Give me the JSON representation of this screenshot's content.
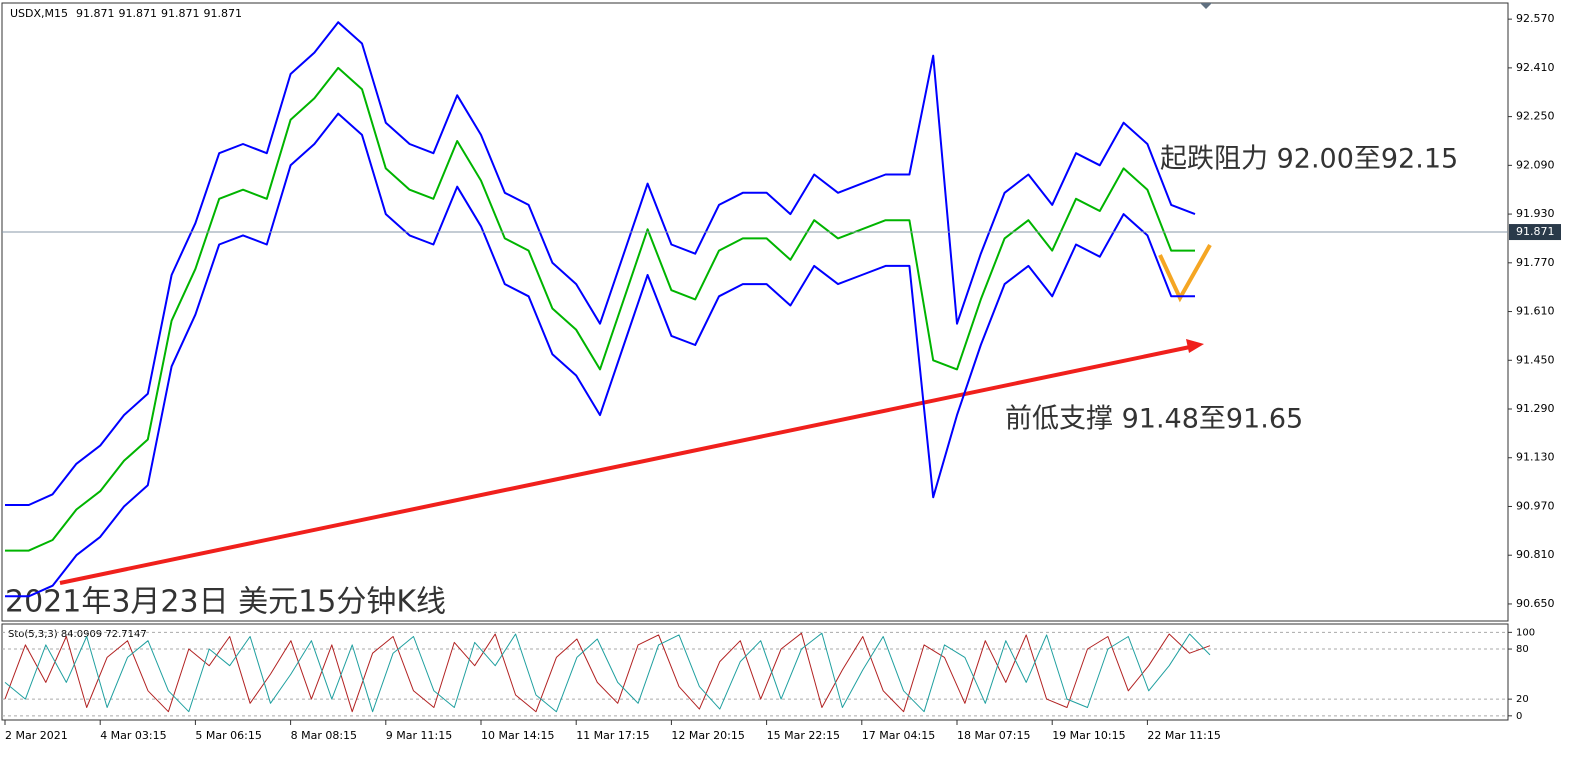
{
  "chart_data": [
    {
      "type": "line",
      "symbol": "USDX,M15",
      "ohlc": [
        91.871,
        91.871,
        91.871,
        91.871
      ],
      "last_price": 91.871,
      "annotations": [
        "起跌阻力 92.00至92.15",
        "前低支撑 91.48至91.65",
        "2021年3月23日 美元15分钟K线"
      ],
      "categories": [
        "2 Mar 2021",
        null,
        null,
        null,
        "4 Mar 03:15",
        null,
        null,
        null,
        "5 Mar 06:15",
        null,
        null,
        null,
        "8 Mar 08:15",
        null,
        null,
        null,
        "9 Mar 11:15",
        null,
        null,
        null,
        "10 Mar 14:15",
        null,
        null,
        null,
        "11 Mar 17:15",
        null,
        null,
        null,
        "12 Mar 20:15",
        null,
        null,
        null,
        "15 Mar 22:15",
        null,
        null,
        null,
        "17 Mar 04:15",
        null,
        null,
        null,
        "18 Mar 07:15",
        null,
        null,
        null,
        "19 Mar 10:15",
        null,
        null,
        null,
        "22 Mar 11:15",
        null,
        null
      ],
      "series": [
        {
          "color": "#0000ff",
          "values": [
            90.975,
            90.975,
            91.01,
            91.11,
            91.17,
            91.27,
            91.34,
            91.73,
            91.9,
            92.13,
            92.16,
            92.13,
            92.39,
            92.46,
            92.56,
            92.49,
            92.23,
            92.16,
            92.13,
            92.32,
            92.19,
            92.0,
            91.96,
            91.77,
            91.7,
            91.57,
            91.8,
            92.03,
            91.83,
            91.8,
            91.96,
            92.0,
            92.0,
            91.93,
            92.06,
            92.0,
            92.03,
            92.06,
            92.06,
            92.45,
            91.57,
            91.8,
            92.0,
            92.06,
            91.96,
            92.13,
            92.09,
            92.23,
            92.16,
            91.96,
            91.93
          ]
        },
        {
          "color": "#0000ff",
          "values": [
            90.675,
            90.675,
            90.71,
            90.81,
            90.87,
            90.97,
            91.04,
            91.43,
            91.6,
            91.83,
            91.86,
            91.83,
            92.09,
            92.16,
            92.26,
            92.19,
            91.93,
            91.86,
            91.83,
            92.02,
            91.89,
            91.7,
            91.66,
            91.47,
            91.4,
            91.27,
            91.5,
            91.73,
            91.53,
            91.5,
            91.66,
            91.7,
            91.7,
            91.63,
            91.76,
            91.7,
            91.73,
            91.76,
            91.76,
            91.0,
            91.27,
            91.5,
            91.7,
            91.76,
            91.66,
            91.83,
            91.79,
            91.93,
            91.86,
            91.66,
            91.66
          ]
        },
        {
          "color": "#00b400",
          "values": [
            90.825,
            90.825,
            90.86,
            90.96,
            91.02,
            91.12,
            91.19,
            91.58,
            91.75,
            91.98,
            92.01,
            91.98,
            92.24,
            92.31,
            92.41,
            92.34,
            92.08,
            92.01,
            91.98,
            92.17,
            92.04,
            91.85,
            91.81,
            91.62,
            91.55,
            91.42,
            91.65,
            91.88,
            91.68,
            91.65,
            91.81,
            91.85,
            91.85,
            91.78,
            91.91,
            91.85,
            91.88,
            91.91,
            91.91,
            91.45,
            91.42,
            91.65,
            91.85,
            91.91,
            91.81,
            91.98,
            91.94,
            92.08,
            92.01,
            91.81,
            91.81
          ]
        }
      ],
      "ylim": [
        90.594,
        92.623
      ],
      "yticks": [
        {
          "value": 92.57,
          "label": "92.570"
        },
        {
          "value": 92.41,
          "label": "92.410"
        },
        {
          "value": 92.25,
          "label": "92.250"
        },
        {
          "value": 92.09,
          "label": "92.090"
        },
        {
          "value": 91.93,
          "label": "91.930"
        },
        {
          "value": 91.77,
          "label": "91.770"
        },
        {
          "value": 91.61,
          "label": "91.610"
        },
        {
          "value": 91.45,
          "label": "91.450"
        },
        {
          "value": 91.29,
          "label": "91.290"
        },
        {
          "value": 91.13,
          "label": "91.130"
        },
        {
          "value": 90.97,
          "label": "90.970"
        },
        {
          "value": 90.81,
          "label": "90.810"
        },
        {
          "value": 90.65,
          "label": "90.650"
        }
      ],
      "grid": false
    },
    {
      "type": "line",
      "title": "Sto(5,3,3) 84.0909 72.7147",
      "series": [
        {
          "color": "#b22222",
          "values": [
            20,
            85,
            40,
            95,
            10,
            70,
            90,
            30,
            5,
            80,
            60,
            95,
            15,
            50,
            90,
            20,
            85,
            5,
            75,
            95,
            30,
            10,
            88,
            60,
            98,
            25,
            5,
            70,
            92,
            40,
            15,
            85,
            97,
            35,
            8,
            65,
            90,
            20,
            80,
            99,
            10,
            55,
            95,
            30,
            5,
            85,
            70,
            15,
            90,
            40,
            97,
            20,
            10,
            80,
            95,
            30,
            60,
            98,
            75,
            84
          ]
        },
        {
          "color": "#20a0a0",
          "values": [
            40,
            20,
            85,
            40,
            95,
            10,
            70,
            90,
            30,
            5,
            80,
            60,
            95,
            15,
            50,
            90,
            20,
            85,
            5,
            75,
            95,
            30,
            10,
            88,
            60,
            98,
            25,
            5,
            70,
            92,
            40,
            15,
            85,
            97,
            35,
            8,
            65,
            90,
            20,
            80,
            99,
            10,
            55,
            95,
            30,
            5,
            85,
            70,
            15,
            90,
            40,
            97,
            20,
            10,
            80,
            95,
            30,
            60,
            98,
            73
          ]
        }
      ],
      "ylim": [
        -5,
        110
      ],
      "yticks": [
        100,
        80,
        20,
        0
      ],
      "grid": true
    }
  ]
}
